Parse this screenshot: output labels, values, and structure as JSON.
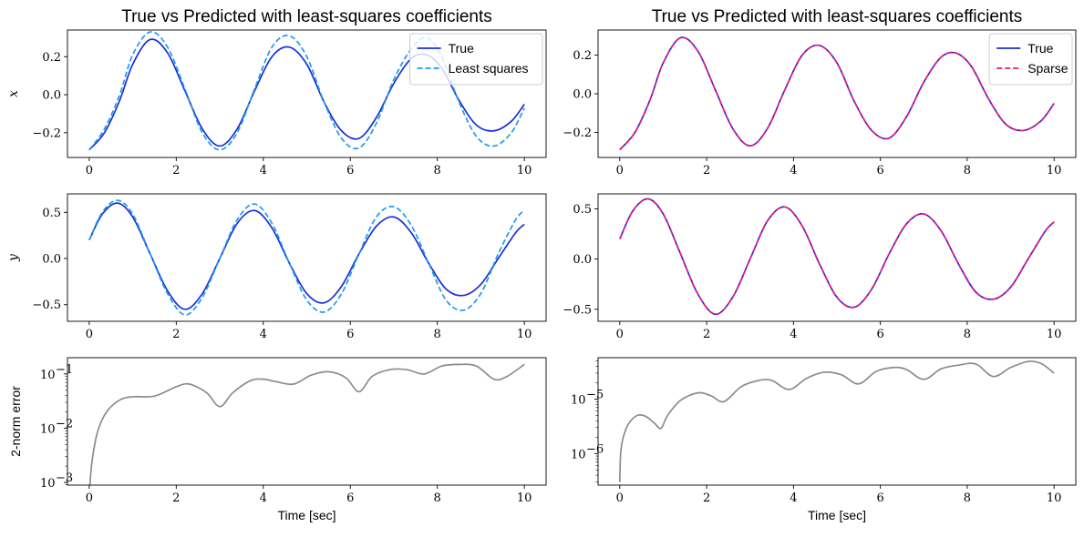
{
  "chart_data": [
    {
      "id": "p1",
      "type": "line",
      "title": "True vs Predicted with least-squares coefficients",
      "xlabel": "",
      "ylabel": "x",
      "xlim": [
        -0.5,
        10.5
      ],
      "ylim": [
        -0.33,
        0.34
      ],
      "yscale": "linear",
      "xticks": [
        0,
        2,
        4,
        6,
        8,
        10
      ],
      "yticks": [
        -0.2,
        0.0,
        0.2
      ],
      "ytick_labels": [
        "−0.2",
        "0.0",
        "0.2"
      ],
      "legend": "top-right",
      "series": [
        {
          "name": "True",
          "color": "#1a2fd8",
          "dash": "solid",
          "x": [
            0,
            0.35,
            0.7,
            1.0,
            1.4,
            1.8,
            2.2,
            2.6,
            3.0,
            3.4,
            3.8,
            4.2,
            4.6,
            5.0,
            5.4,
            5.8,
            6.2,
            6.6,
            7.0,
            7.4,
            7.75,
            8.1,
            8.5,
            8.9,
            9.3,
            9.7,
            10.0
          ],
          "y": [
            -0.29,
            -0.2,
            -0.03,
            0.16,
            0.29,
            0.22,
            0.02,
            -0.18,
            -0.27,
            -0.18,
            0.02,
            0.2,
            0.25,
            0.16,
            -0.04,
            -0.19,
            -0.23,
            -0.12,
            0.06,
            0.19,
            0.21,
            0.14,
            -0.03,
            -0.16,
            -0.19,
            -0.14,
            -0.05
          ]
        },
        {
          "name": "Least squares",
          "color": "#1f9be8",
          "dash": "dashed",
          "x": [
            0,
            0.35,
            0.7,
            1.0,
            1.4,
            1.8,
            2.2,
            2.6,
            3.0,
            3.4,
            3.8,
            4.2,
            4.6,
            5.0,
            5.4,
            5.8,
            6.2,
            6.6,
            7.0,
            7.4,
            7.75,
            8.1,
            8.5,
            8.9,
            9.3,
            9.7,
            10.0
          ],
          "y": [
            -0.29,
            -0.18,
            0.0,
            0.21,
            0.33,
            0.25,
            0.03,
            -0.2,
            -0.29,
            -0.2,
            0.03,
            0.25,
            0.31,
            0.2,
            -0.04,
            -0.23,
            -0.28,
            -0.15,
            0.08,
            0.24,
            0.3,
            0.2,
            -0.04,
            -0.22,
            -0.27,
            -0.2,
            -0.07
          ]
        }
      ]
    },
    {
      "id": "p2",
      "type": "line",
      "title": "True vs Predicted with least-squares coefficients",
      "xlabel": "",
      "ylabel": "",
      "xlim": [
        -0.5,
        10.5
      ],
      "ylim": [
        -0.33,
        0.33
      ],
      "yscale": "linear",
      "xticks": [
        0,
        2,
        4,
        6,
        8,
        10
      ],
      "yticks": [
        -0.2,
        0.0,
        0.2
      ],
      "ytick_labels": [
        "−0.2",
        "0.0",
        "0.2"
      ],
      "legend": "top-right",
      "series": [
        {
          "name": "True",
          "color": "#1a2fd8",
          "dash": "solid",
          "x": [
            0,
            0.35,
            0.7,
            1.0,
            1.4,
            1.8,
            2.2,
            2.6,
            3.0,
            3.4,
            3.8,
            4.2,
            4.6,
            5.0,
            5.4,
            5.8,
            6.2,
            6.6,
            7.0,
            7.4,
            7.75,
            8.1,
            8.5,
            8.9,
            9.3,
            9.7,
            10.0
          ],
          "y": [
            -0.29,
            -0.2,
            -0.03,
            0.16,
            0.29,
            0.22,
            0.02,
            -0.18,
            -0.27,
            -0.18,
            0.02,
            0.2,
            0.25,
            0.16,
            -0.04,
            -0.19,
            -0.23,
            -0.12,
            0.06,
            0.19,
            0.21,
            0.14,
            -0.03,
            -0.16,
            -0.19,
            -0.14,
            -0.05
          ]
        },
        {
          "name": "Sparse",
          "color": "#f0197a",
          "dash": "dashed",
          "x": [
            0,
            0.35,
            0.7,
            1.0,
            1.4,
            1.8,
            2.2,
            2.6,
            3.0,
            3.4,
            3.8,
            4.2,
            4.6,
            5.0,
            5.4,
            5.8,
            6.2,
            6.6,
            7.0,
            7.4,
            7.75,
            8.1,
            8.5,
            8.9,
            9.3,
            9.7,
            10.0
          ],
          "y": [
            -0.29,
            -0.2,
            -0.03,
            0.16,
            0.29,
            0.22,
            0.02,
            -0.18,
            -0.27,
            -0.18,
            0.02,
            0.2,
            0.25,
            0.16,
            -0.04,
            -0.19,
            -0.23,
            -0.12,
            0.06,
            0.19,
            0.21,
            0.14,
            -0.03,
            -0.16,
            -0.19,
            -0.14,
            -0.05
          ]
        }
      ]
    },
    {
      "id": "p3",
      "type": "line",
      "title": "",
      "xlabel": "",
      "ylabel": "y",
      "xlim": [
        -0.5,
        10.5
      ],
      "ylim": [
        -0.68,
        0.7
      ],
      "yscale": "linear",
      "xticks": [
        0,
        2,
        4,
        6,
        8,
        10
      ],
      "yticks": [
        -0.5,
        0.0,
        0.5
      ],
      "ytick_labels": [
        "−0.5",
        "0.0",
        "0.5"
      ],
      "legend": "none",
      "series": [
        {
          "name": "True",
          "color": "#1a2fd8",
          "dash": "solid",
          "x": [
            0,
            0.3,
            0.65,
            1.0,
            1.4,
            1.8,
            2.2,
            2.6,
            3.0,
            3.4,
            3.8,
            4.2,
            4.6,
            5.0,
            5.4,
            5.8,
            6.2,
            6.6,
            7.0,
            7.4,
            7.8,
            8.2,
            8.6,
            9.0,
            9.4,
            9.8,
            10.0
          ],
          "y": [
            0.2,
            0.48,
            0.6,
            0.45,
            0.05,
            -0.35,
            -0.55,
            -0.38,
            0.0,
            0.38,
            0.52,
            0.33,
            -0.05,
            -0.38,
            -0.48,
            -0.3,
            0.05,
            0.35,
            0.45,
            0.28,
            -0.05,
            -0.33,
            -0.4,
            -0.28,
            0.0,
            0.28,
            0.37
          ]
        },
        {
          "name": "Least squares",
          "color": "#1f9be8",
          "dash": "dashed",
          "x": [
            0,
            0.3,
            0.65,
            1.0,
            1.4,
            1.8,
            2.2,
            2.6,
            3.0,
            3.4,
            3.8,
            4.2,
            4.6,
            5.0,
            5.4,
            5.8,
            6.2,
            6.6,
            7.0,
            7.4,
            7.8,
            8.2,
            8.6,
            9.0,
            9.4,
            9.8,
            10.0
          ],
          "y": [
            0.2,
            0.5,
            0.63,
            0.48,
            0.05,
            -0.38,
            -0.61,
            -0.42,
            0.0,
            0.42,
            0.59,
            0.38,
            -0.05,
            -0.45,
            -0.58,
            -0.38,
            0.05,
            0.45,
            0.56,
            0.36,
            -0.05,
            -0.45,
            -0.56,
            -0.38,
            0.05,
            0.42,
            0.52
          ]
        }
      ]
    },
    {
      "id": "p4",
      "type": "line",
      "title": "",
      "xlabel": "",
      "ylabel": "",
      "xlim": [
        -0.5,
        10.5
      ],
      "ylim": [
        -0.62,
        0.65
      ],
      "yscale": "linear",
      "xticks": [
        0,
        2,
        4,
        6,
        8,
        10
      ],
      "yticks": [
        -0.5,
        0.0,
        0.5
      ],
      "ytick_labels": [
        "−0.5",
        "0.0",
        "0.5"
      ],
      "legend": "none",
      "series": [
        {
          "name": "True",
          "color": "#1a2fd8",
          "dash": "solid",
          "x": [
            0,
            0.3,
            0.65,
            1.0,
            1.4,
            1.8,
            2.2,
            2.6,
            3.0,
            3.4,
            3.8,
            4.2,
            4.6,
            5.0,
            5.4,
            5.8,
            6.2,
            6.6,
            7.0,
            7.4,
            7.8,
            8.2,
            8.6,
            9.0,
            9.4,
            9.8,
            10.0
          ],
          "y": [
            0.2,
            0.48,
            0.6,
            0.45,
            0.05,
            -0.35,
            -0.55,
            -0.38,
            0.0,
            0.38,
            0.52,
            0.33,
            -0.05,
            -0.38,
            -0.48,
            -0.3,
            0.05,
            0.35,
            0.45,
            0.28,
            -0.05,
            -0.33,
            -0.4,
            -0.28,
            0.0,
            0.28,
            0.37
          ]
        },
        {
          "name": "Sparse",
          "color": "#f0197a",
          "dash": "dashed",
          "x": [
            0,
            0.3,
            0.65,
            1.0,
            1.4,
            1.8,
            2.2,
            2.6,
            3.0,
            3.4,
            3.8,
            4.2,
            4.6,
            5.0,
            5.4,
            5.8,
            6.2,
            6.6,
            7.0,
            7.4,
            7.8,
            8.2,
            8.6,
            9.0,
            9.4,
            9.8,
            10.0
          ],
          "y": [
            0.2,
            0.48,
            0.6,
            0.45,
            0.05,
            -0.35,
            -0.55,
            -0.38,
            0.0,
            0.38,
            0.52,
            0.33,
            -0.05,
            -0.38,
            -0.48,
            -0.3,
            0.05,
            0.35,
            0.45,
            0.28,
            -0.05,
            -0.33,
            -0.4,
            -0.28,
            0.0,
            0.28,
            0.37
          ]
        }
      ]
    },
    {
      "id": "p5",
      "type": "line",
      "title": "",
      "xlabel": "Time [sec]",
      "ylabel": "2-norm error",
      "xlim": [
        -0.5,
        10.5
      ],
      "ylim_log10": [
        -3.05,
        -0.7
      ],
      "yscale": "log",
      "xticks": [
        0,
        2,
        4,
        6,
        8,
        10
      ],
      "yticks_log10": [
        -3,
        -2,
        -1
      ],
      "ytick_labels": [
        "10",
        "10",
        "10"
      ],
      "ytick_exponents": [
        "−3",
        "−2",
        "−1"
      ],
      "legend": "none",
      "series": [
        {
          "name": "error",
          "color": "#8c8c8c",
          "dash": "solid",
          "x": [
            0.0,
            0.02,
            0.08,
            0.2,
            0.4,
            0.7,
            1.0,
            1.5,
            2.0,
            2.3,
            2.7,
            3.0,
            3.3,
            3.7,
            4.0,
            4.3,
            4.7,
            5.1,
            5.5,
            5.9,
            6.2,
            6.5,
            6.9,
            7.3,
            7.7,
            8.1,
            8.5,
            8.9,
            9.3,
            9.6,
            10.0
          ],
          "y": [
            0.0003,
            0.001,
            0.003,
            0.009,
            0.02,
            0.033,
            0.038,
            0.039,
            0.058,
            0.065,
            0.045,
            0.025,
            0.045,
            0.075,
            0.08,
            0.072,
            0.065,
            0.095,
            0.11,
            0.085,
            0.047,
            0.09,
            0.12,
            0.12,
            0.1,
            0.14,
            0.15,
            0.14,
            0.08,
            0.09,
            0.15
          ]
        }
      ]
    },
    {
      "id": "p6",
      "type": "line",
      "title": "",
      "xlabel": "Time [sec]",
      "ylabel": "",
      "xlim": [
        -0.5,
        10.5
      ],
      "ylim_log10": [
        -6.58,
        -4.24
      ],
      "yscale": "log",
      "xticks": [
        0,
        2,
        4,
        6,
        8,
        10
      ],
      "yticks_log10": [
        -6,
        -5
      ],
      "ytick_labels": [
        "10",
        "10"
      ],
      "ytick_exponents": [
        "−6",
        "−5"
      ],
      "legend": "none",
      "series": [
        {
          "name": "error",
          "color": "#8c8c8c",
          "dash": "solid",
          "x": [
            0.0,
            0.02,
            0.08,
            0.2,
            0.4,
            0.6,
            0.8,
            0.95,
            1.1,
            1.4,
            1.8,
            2.1,
            2.4,
            2.8,
            3.2,
            3.5,
            3.9,
            4.3,
            4.7,
            5.1,
            5.5,
            5.9,
            6.3,
            6.6,
            7.0,
            7.4,
            7.8,
            8.2,
            8.6,
            9.0,
            9.4,
            9.7,
            10.0
          ],
          "y": [
            3e-07,
            1e-06,
            2e-06,
            3.5e-06,
            5e-06,
            4.8e-06,
            3.6e-06,
            2.9e-06,
            5e-06,
            9.5e-06,
            1.3e-05,
            1.15e-05,
            9e-06,
            1.7e-05,
            2.2e-05,
            2.2e-05,
            1.5e-05,
            2.4e-05,
            3.1e-05,
            2.8e-05,
            1.9e-05,
            3.2e-05,
            3.8e-05,
            3.5e-05,
            2.3e-05,
            3.6e-05,
            4.2e-05,
            4.4e-05,
            2.6e-05,
            3.8e-05,
            4.9e-05,
            4.5e-05,
            3e-05
          ]
        }
      ]
    }
  ]
}
